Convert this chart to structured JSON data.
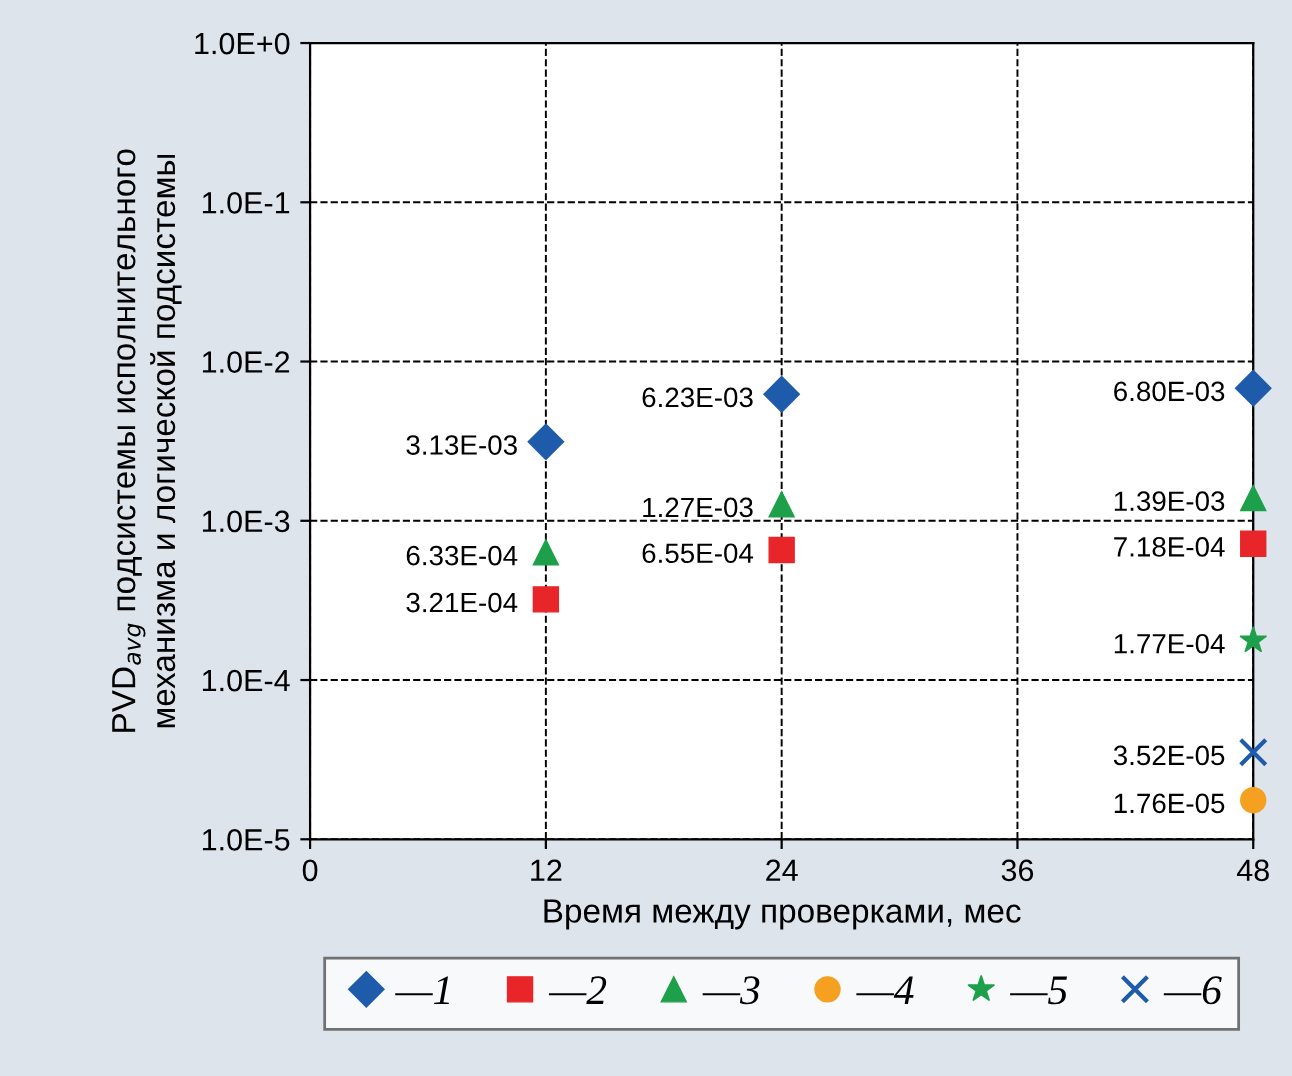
{
  "chart_data": {
    "type": "scatter",
    "xlabel": "Время между проверками, мес",
    "ylabel": "PVD$_{avg}$ подсистемы исполнительного\nмеханизма и логической подсистемы",
    "xlim": [
      0,
      48
    ],
    "xticks": [
      0,
      12,
      24,
      36,
      48
    ],
    "ylim": [
      1e-05,
      1
    ],
    "log": "y",
    "yticks": [
      {
        "value": 1e-05,
        "label": "1.0E-5"
      },
      {
        "value": 0.0001,
        "label": "1.0E-4"
      },
      {
        "value": 0.001,
        "label": "1.0E-3"
      },
      {
        "value": 0.01,
        "label": "1.0E-2"
      },
      {
        "value": 0.1,
        "label": "1.0E-1"
      },
      {
        "value": 1,
        "label": "1.0E+0"
      }
    ],
    "grid": true,
    "legend": "bottom",
    "series": [
      {
        "name": "—1",
        "color": "#1f5bab",
        "marker": "diamond",
        "x": [
          12,
          24,
          48
        ],
        "values": [
          0.00313,
          0.00623,
          0.0068
        ],
        "value_labels": [
          "3.13E-03",
          "6.23E-03",
          "6.80E-03"
        ]
      },
      {
        "name": "—2",
        "color": "#e8262a",
        "marker": "square",
        "x": [
          12,
          24,
          48
        ],
        "values": [
          0.000321,
          0.000655,
          0.000718
        ],
        "value_labels": [
          "3.21E-04",
          "6.55E-04",
          "7.18E-04"
        ]
      },
      {
        "name": "—3",
        "color": "#1ea04a",
        "marker": "triangle",
        "x": [
          12,
          24,
          48
        ],
        "values": [
          0.000633,
          0.00127,
          0.00139
        ],
        "value_labels": [
          "6.33E-04",
          "1.27E-03",
          "1.39E-03"
        ]
      },
      {
        "name": "—4",
        "color": "#f5a020",
        "marker": "circle",
        "x": [
          48
        ],
        "values": [
          1.76e-05
        ],
        "value_labels": [
          "1.76E-05"
        ]
      },
      {
        "name": "—5",
        "color": "#1ea04a",
        "marker": "star",
        "x": [
          48
        ],
        "values": [
          0.000177
        ],
        "value_labels": [
          "1.77E-04"
        ]
      },
      {
        "name": "—6",
        "color": "#1f5bab",
        "marker": "cross",
        "x": [
          48
        ],
        "values": [
          3.52e-05
        ],
        "value_labels": [
          "3.52E-05"
        ]
      }
    ]
  }
}
